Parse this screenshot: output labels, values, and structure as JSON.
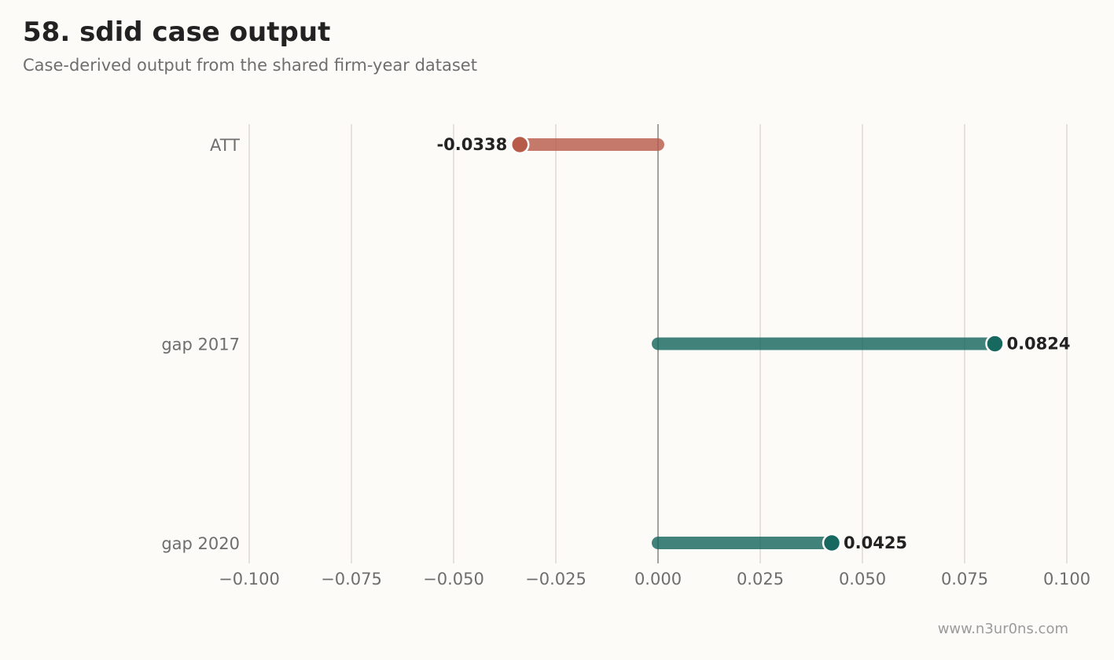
{
  "header": {
    "title": "58. sdid case output",
    "subtitle": "Case-derived output from the shared firm-year dataset"
  },
  "footer": {
    "watermark": "www.n3ur0ns.com"
  },
  "colors": {
    "negative": "#b85c4a",
    "positive": "#17685f",
    "grid": "#dddad5",
    "zero_line": "#a3a19d",
    "tick_text": "#6e6e6e",
    "label_text": "#222222"
  },
  "chart_data": {
    "type": "bar",
    "orientation": "horizontal",
    "style": "lollipop",
    "categories": [
      "ATT",
      "gap 2017",
      "gap 2020"
    ],
    "values": [
      -0.0338,
      0.0824,
      0.0425
    ],
    "value_labels": [
      "-0.0338",
      "0.0824",
      "0.0425"
    ],
    "xlim": [
      -0.1,
      0.1
    ],
    "xticks": [
      -0.1,
      -0.075,
      -0.05,
      -0.025,
      0.0,
      0.025,
      0.05,
      0.075,
      0.1
    ],
    "xtick_labels": [
      "−0.100",
      "−0.075",
      "−0.050",
      "−0.025",
      "0.000",
      "0.025",
      "0.050",
      "0.075",
      "0.100"
    ],
    "grid": "vertical",
    "legend": "none"
  }
}
